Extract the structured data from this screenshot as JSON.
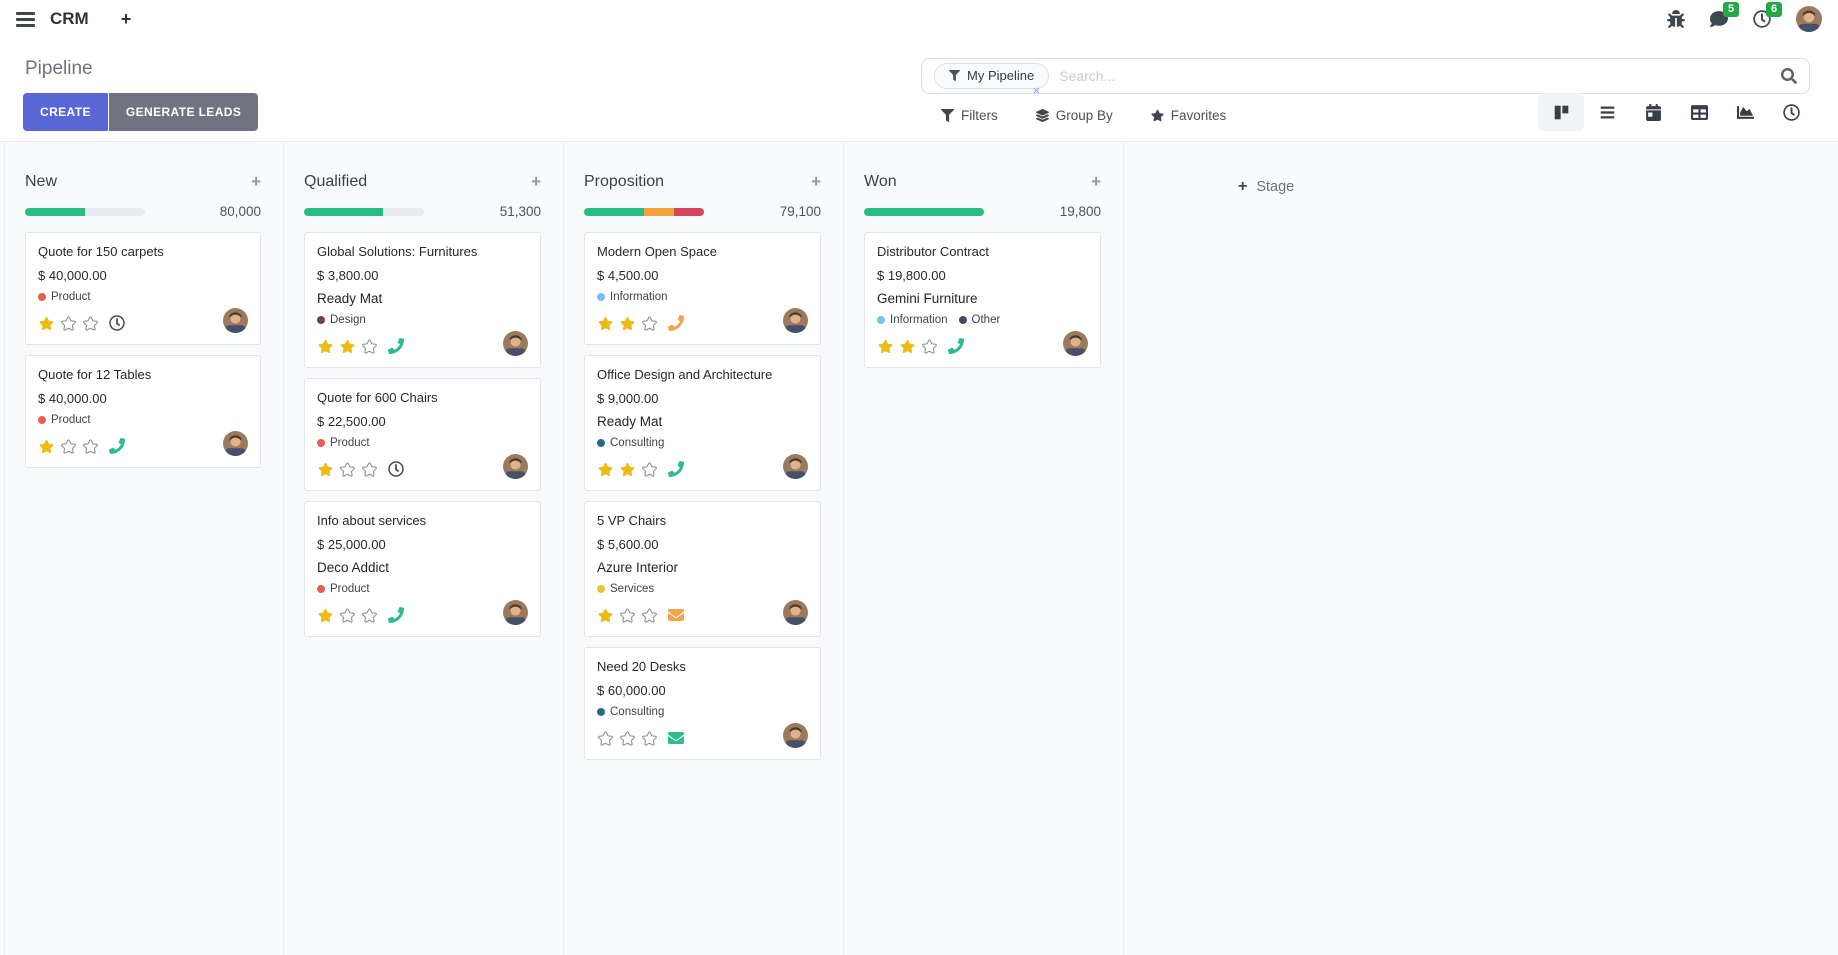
{
  "nav": {
    "app_name": "CRM",
    "messages_badge": "5",
    "activities_badge": "6"
  },
  "control_panel": {
    "title": "Pipeline",
    "create_label": "CREATE",
    "generate_leads_label": "GENERATE LEADS",
    "search": {
      "facet_label": "My Pipeline",
      "remove_facet": "×",
      "placeholder": "Search..."
    },
    "filters_label": "Filters",
    "group_by_label": "Group By",
    "favorites_label": "Favorites",
    "view_switcher": [
      "kanban",
      "list",
      "calendar",
      "pivot",
      "graph",
      "activity"
    ],
    "active_view": "kanban"
  },
  "board": {
    "add_column_label": "Stage",
    "columns": [
      {
        "name": "New",
        "total": "80,000",
        "progress": [
          {
            "color": "green",
            "pct": 50
          }
        ],
        "cards": [
          {
            "title": "Quote for 150 carpets",
            "amount": "$ 40,000.00",
            "tags": [
              {
                "color": "red",
                "label": "Product"
              }
            ],
            "stars": 1,
            "activity": {
              "icon": "clock",
              "color": "default"
            }
          },
          {
            "title": "Quote for 12 Tables",
            "amount": "$ 40,000.00",
            "tags": [
              {
                "color": "red",
                "label": "Product"
              }
            ],
            "stars": 1,
            "activity": {
              "icon": "phone",
              "color": "green"
            }
          }
        ]
      },
      {
        "name": "Qualified",
        "total": "51,300",
        "progress": [
          {
            "color": "green",
            "pct": 66
          }
        ],
        "cards": [
          {
            "title": "Global Solutions: Furnitures",
            "amount": "$ 3,800.00",
            "partner": "Ready Mat",
            "tags": [
              {
                "color": "purple",
                "label": "Design"
              }
            ],
            "stars": 2,
            "activity": {
              "icon": "phone",
              "color": "green"
            }
          },
          {
            "title": "Quote for 600 Chairs",
            "amount": "$ 22,500.00",
            "tags": [
              {
                "color": "red",
                "label": "Product"
              }
            ],
            "stars": 1,
            "activity": {
              "icon": "clock",
              "color": "default"
            }
          },
          {
            "title": "Info about services",
            "amount": "$ 25,000.00",
            "partner": "Deco Addict",
            "tags": [
              {
                "color": "red",
                "label": "Product"
              }
            ],
            "stars": 1,
            "activity": {
              "icon": "phone",
              "color": "green"
            }
          }
        ]
      },
      {
        "name": "Proposition",
        "total": "79,100",
        "progress": [
          {
            "color": "green",
            "pct": 50
          },
          {
            "color": "orange",
            "pct": 25
          },
          {
            "color": "red",
            "pct": 25
          }
        ],
        "cards": [
          {
            "title": "Modern Open Space",
            "amount": "$ 4,500.00",
            "tags": [
              {
                "color": "lightblue",
                "label": "Information"
              }
            ],
            "stars": 2,
            "activity": {
              "icon": "phone",
              "color": "orange"
            }
          },
          {
            "title": "Office Design and Architecture",
            "amount": "$ 9,000.00",
            "partner": "Ready Mat",
            "tags": [
              {
                "color": "teal",
                "label": "Consulting"
              }
            ],
            "stars": 2,
            "activity": {
              "icon": "phone",
              "color": "green"
            }
          },
          {
            "title": "5 VP Chairs",
            "amount": "$ 5,600.00",
            "partner": "Azure Interior",
            "tags": [
              {
                "color": "yellow",
                "label": "Services"
              }
            ],
            "stars": 1,
            "activity": {
              "icon": "envelope",
              "color": "orange"
            }
          },
          {
            "title": "Need 20 Desks",
            "amount": "$ 60,000.00",
            "tags": [
              {
                "color": "teal",
                "label": "Consulting"
              }
            ],
            "stars": 0,
            "activity": {
              "icon": "envelope",
              "color": "green"
            }
          }
        ]
      },
      {
        "name": "Won",
        "total": "19,800",
        "progress": [
          {
            "color": "green",
            "pct": 100
          }
        ],
        "cards": [
          {
            "title": "Distributor Contract",
            "amount": "$ 19,800.00",
            "partner": "Gemini Furniture",
            "tags": [
              {
                "color": "lightblue",
                "label": "Information"
              },
              {
                "color": "navy",
                "label": "Other"
              }
            ],
            "stars": 2,
            "activity": {
              "icon": "phone",
              "color": "green"
            }
          }
        ]
      }
    ]
  },
  "colors": {
    "accent": "#5b66d6",
    "secondary_button": "#6e7480",
    "badge_green": "#28a745",
    "progress": {
      "green": "#27bd81",
      "orange": "#f0a43a",
      "red": "#d5465e",
      "empty": "#e9ecef"
    },
    "star_gold": "#eebb12",
    "star_empty": "#8b9199",
    "tag": {
      "red": "#e8604f",
      "purple": "#6b3e63",
      "lightblue": "#72c4ec",
      "teal": "#256d85",
      "yellow": "#ecc233",
      "navy": "#3d4e67"
    },
    "icon": {
      "green": "#2dbd8a",
      "orange": "#f0a54c",
      "default": "#454c54"
    }
  }
}
